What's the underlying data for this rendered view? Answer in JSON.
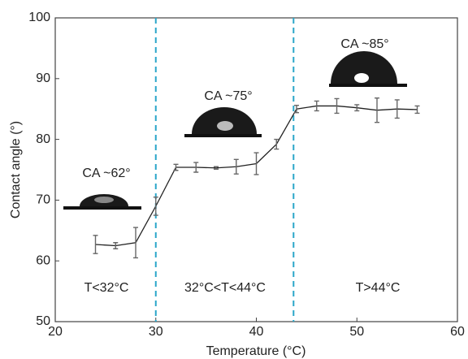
{
  "chart_data": {
    "type": "errorbar-line",
    "xlabel": "Temperature (°C)",
    "ylabel": "Contact angle (°)",
    "xlim": [
      20,
      60
    ],
    "xticks": [
      20,
      30,
      40,
      50,
      60
    ],
    "ylim": [
      50,
      100
    ],
    "yticks": [
      50,
      60,
      70,
      80,
      90,
      100
    ],
    "x": [
      24,
      26,
      28,
      30,
      32,
      34,
      36,
      38,
      40,
      42,
      44,
      46,
      48,
      50,
      52,
      54,
      56
    ],
    "series": [
      {
        "color": "#222222",
        "values": [
          62.7,
          62.5,
          63,
          69,
          75.4,
          75.4,
          75.3,
          75.5,
          76,
          79.2,
          85,
          85.5,
          85.5,
          85.2,
          84.8,
          85,
          84.9
        ],
        "errors": [
          1.5,
          0.5,
          2.5,
          1.5,
          0.5,
          0.8,
          0.2,
          1.2,
          1.8,
          0.8,
          0.6,
          0.8,
          1.2,
          0.5,
          2,
          1.5,
          0.6
        ]
      }
    ],
    "reference_lines": {
      "x": [
        30,
        43.7
      ],
      "color": "#2aa6c9"
    },
    "annotations": [
      "CA ~62°",
      "CA ~75°",
      "CA ~85°",
      "T<32°C",
      "32°C<T<44°C",
      "T>44°C"
    ]
  }
}
